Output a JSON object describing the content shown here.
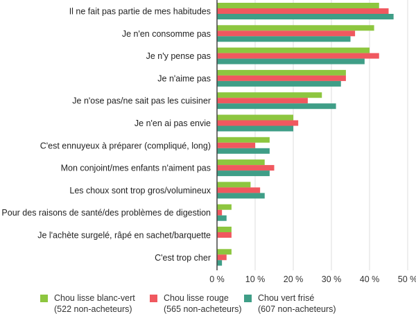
{
  "chart_data": {
    "type": "bar",
    "orientation": "horizontal",
    "categories": [
      "Il ne fait pas partie de mes habitudes",
      "Je n'en consomme pas",
      "Je n'y pense pas",
      "Je n'aime pas",
      "Je n'ose pas/ne sait pas les cuisiner",
      "Je n'en ai pas envie",
      "C'est ennuyeux à préparer (compliqué, long)",
      "Mon conjoint/mes enfants n'aiment pas",
      "Les choux sont trop gros/volumineux",
      "Pour des raisons de santé/des problèmes de digestion",
      "Je l'achète surgelé, râpé en sachet/barquette",
      "C'est trop cher"
    ],
    "series": [
      {
        "name": "Chou lisse blanc-vert",
        "sub": "(522 non-acheteurs)",
        "color": "#8dc63f",
        "values": [
          42.5,
          41.2,
          40,
          33.8,
          27.5,
          20,
          13.8,
          12.5,
          8.8,
          3.8,
          3.8,
          3.8
        ]
      },
      {
        "name": "Chou lisse rouge",
        "sub": "(565 non-acheteurs)",
        "color": "#f0585f",
        "values": [
          45,
          36.2,
          42.5,
          33.8,
          23.8,
          21.3,
          10,
          15,
          11.3,
          1.3,
          3.8,
          2.5
        ]
      },
      {
        "name": "Chou vert frisé",
        "sub": "(607 non-acheteurs)",
        "color": "#3f9e87",
        "values": [
          46.3,
          35,
          38.7,
          32.5,
          31.2,
          20,
          13.8,
          13.8,
          12.5,
          2.5,
          0,
          1.3
        ]
      }
    ],
    "xlim": [
      0,
      50
    ],
    "xticks": [
      "0 %",
      "10 %",
      "20 %",
      "30 %",
      "40 %",
      "50 %"
    ],
    "grid": true,
    "legend": "bottom"
  }
}
